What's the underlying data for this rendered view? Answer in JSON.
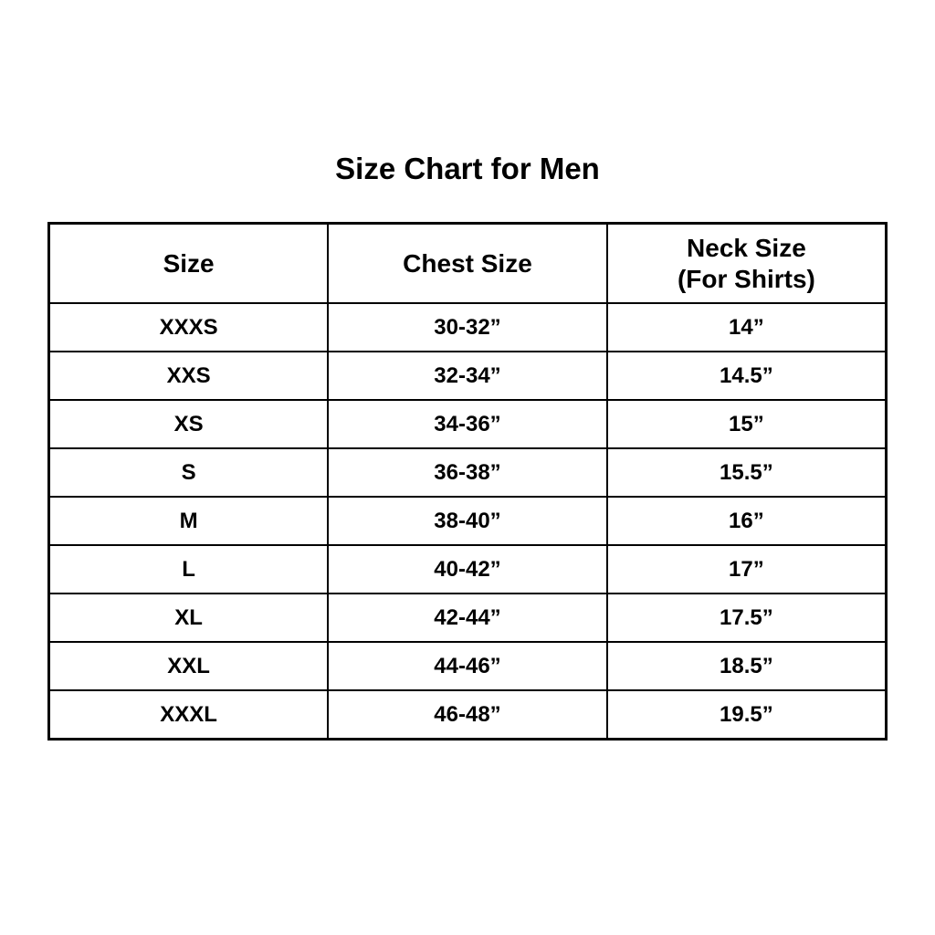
{
  "chart_data": {
    "type": "table",
    "title": "Size Chart for Men",
    "columns": [
      "Size",
      "Chest Size",
      "Neck Size (For Shirts)"
    ],
    "header_lines": {
      "col3_line1": "Neck Size",
      "col3_line2": "(For Shirts)"
    },
    "rows": [
      {
        "size": "XXXS",
        "chest": "30-32”",
        "neck": "14”"
      },
      {
        "size": "XXS",
        "chest": "32-34”",
        "neck": "14.5”"
      },
      {
        "size": "XS",
        "chest": "34-36”",
        "neck": "15”"
      },
      {
        "size": "S",
        "chest": "36-38”",
        "neck": "15.5”"
      },
      {
        "size": "M",
        "chest": "38-40”",
        "neck": "16”"
      },
      {
        "size": "L",
        "chest": "40-42”",
        "neck": "17”"
      },
      {
        "size": "XL",
        "chest": "42-44”",
        "neck": "17.5”"
      },
      {
        "size": "XXL",
        "chest": "44-46”",
        "neck": "18.5”"
      },
      {
        "size": "XXXL",
        "chest": "46-48”",
        "neck": "19.5”"
      }
    ],
    "colors": {
      "background": "#ffffff",
      "text": "#000000",
      "border": "#000000"
    },
    "layout": {
      "grid": true,
      "column_count": 3,
      "row_count": 9
    }
  }
}
